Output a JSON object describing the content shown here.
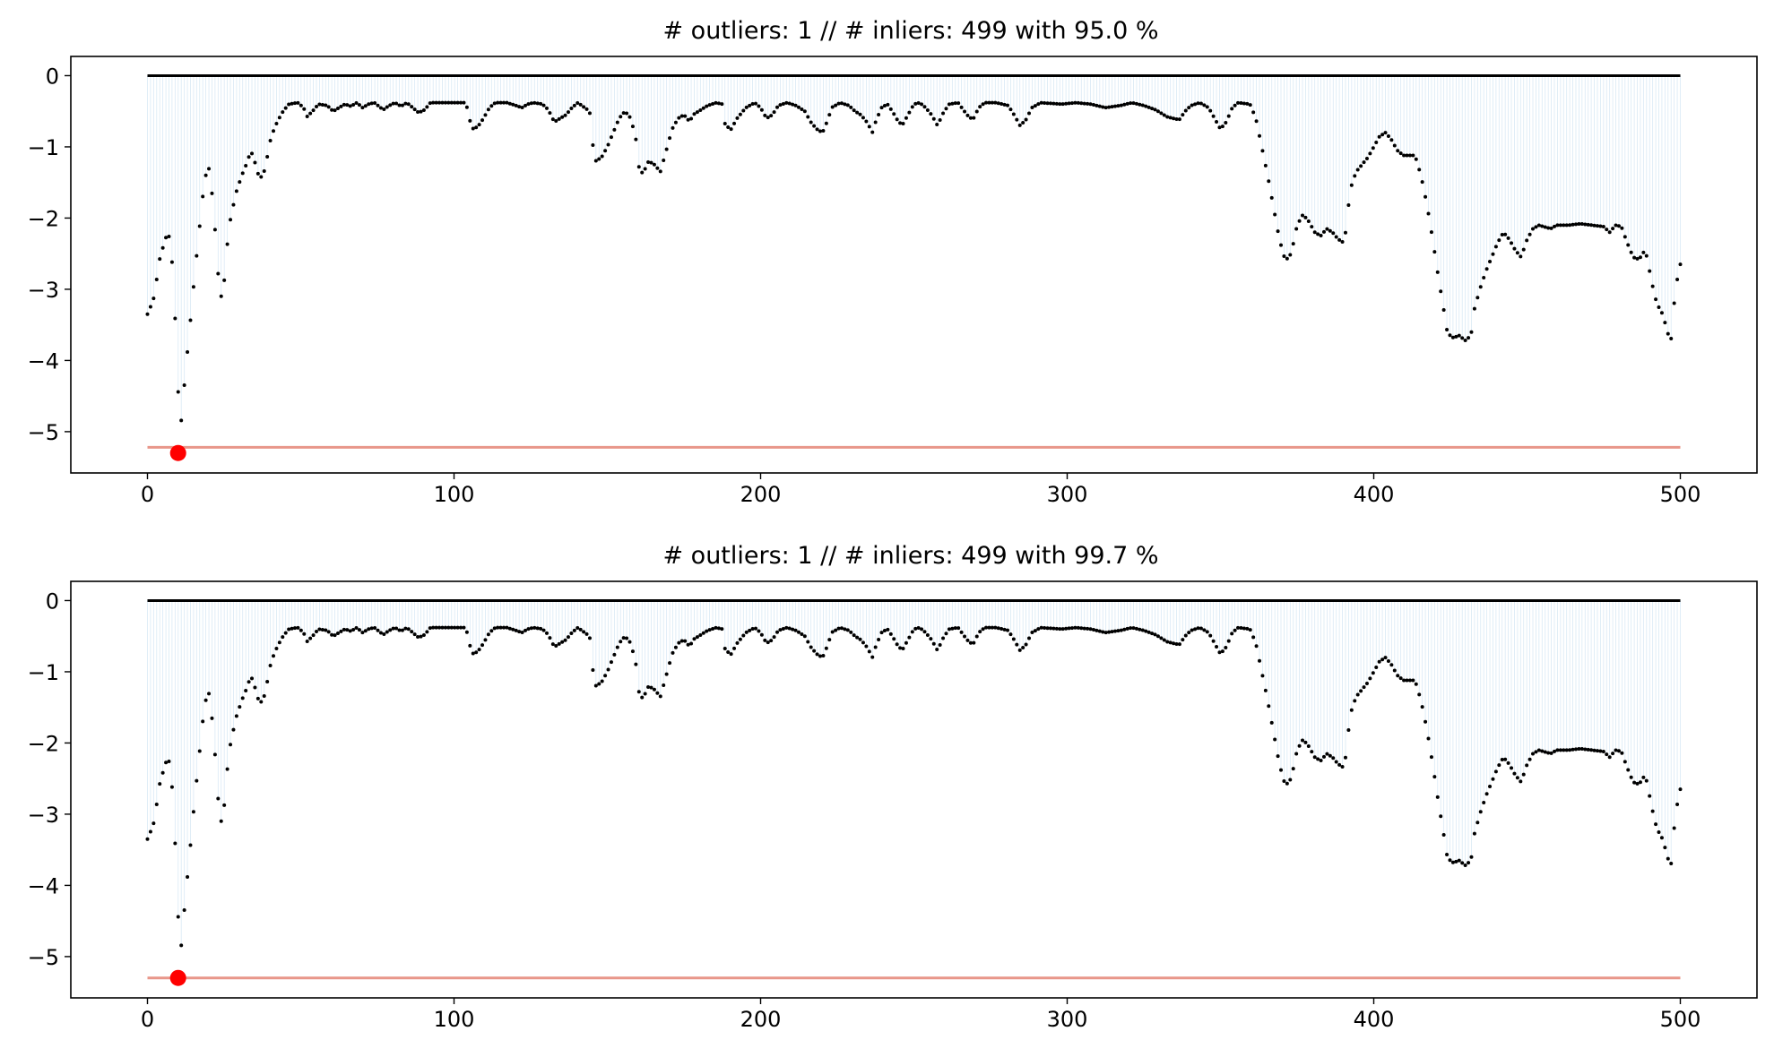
{
  "chart_data": [
    {
      "type": "scatter",
      "title": "# outliers: 1 // # inliers: 499 with 95.0 %",
      "xlim": [
        -25,
        525
      ],
      "ylim": [
        -5.58,
        0.27
      ],
      "xticks": [
        0,
        100,
        200,
        300,
        400,
        500
      ],
      "yticks": [
        0,
        -1,
        -2,
        -3,
        -4,
        -5
      ],
      "threshold": -5.22,
      "zero_line": 0,
      "outlier": {
        "x": 10,
        "y": -5.3
      },
      "colors": {
        "points": "#000000",
        "stems": "#d9e9f5",
        "zero_line": "#000000",
        "threshold": "#e8968a",
        "outlier": "#ff0000"
      }
    },
    {
      "type": "scatter",
      "title": "# outliers: 1 // # inliers: 499 with 99.7 %",
      "xlim": [
        -25,
        525
      ],
      "ylim": [
        -5.58,
        0.27
      ],
      "xticks": [
        0,
        100,
        200,
        300,
        400,
        500
      ],
      "yticks": [
        0,
        -1,
        -2,
        -3,
        -4,
        -5
      ],
      "threshold": -5.3,
      "zero_line": 0,
      "outlier": {
        "x": 10,
        "y": -5.3
      },
      "colors": {
        "points": "#000000",
        "stems": "#d9e9f5",
        "zero_line": "#000000",
        "threshold": "#e8968a",
        "outlier": "#ff0000"
      }
    }
  ],
  "series_anchors": [
    [
      0,
      -3.35
    ],
    [
      2,
      -3.15
    ],
    [
      3,
      -2.9
    ],
    [
      4,
      -2.6
    ],
    [
      6,
      -2.3
    ],
    [
      7,
      -2.2
    ],
    [
      8,
      -2.4
    ],
    [
      9,
      -3.05
    ],
    [
      10,
      -4.0
    ],
    [
      11,
      -5.05
    ],
    [
      12,
      -4.6
    ],
    [
      13,
      -4.1
    ],
    [
      14,
      -3.7
    ],
    [
      15,
      -3.25
    ],
    [
      16,
      -2.8
    ],
    [
      17,
      -2.4
    ],
    [
      18,
      -2.0
    ],
    [
      19,
      -1.6
    ],
    [
      20,
      -1.35
    ],
    [
      21,
      -1.3
    ],
    [
      22,
      -1.7
    ],
    [
      23,
      -2.2
    ],
    [
      24,
      -2.8
    ],
    [
      25,
      -3.1
    ],
    [
      26,
      -2.9
    ],
    [
      27,
      -2.4
    ],
    [
      28,
      -2.05
    ],
    [
      30,
      -1.65
    ],
    [
      32,
      -1.4
    ],
    [
      34,
      -1.2
    ],
    [
      35,
      -1.05
    ],
    [
      36,
      -1.15
    ],
    [
      37,
      -1.3
    ],
    [
      38,
      -1.45
    ],
    [
      39,
      -1.4
    ],
    [
      40,
      -1.3
    ],
    [
      41,
      -1.05
    ],
    [
      42,
      -0.85
    ],
    [
      44,
      -0.65
    ],
    [
      46,
      -0.5
    ],
    [
      48,
      -0.4
    ],
    [
      51,
      -0.38
    ],
    [
      53,
      -0.45
    ],
    [
      54,
      -0.58
    ],
    [
      56,
      -0.5
    ],
    [
      58,
      -0.4
    ],
    [
      61,
      -0.42
    ],
    [
      63,
      -0.5
    ],
    [
      65,
      -0.45
    ],
    [
      67,
      -0.4
    ],
    [
      69,
      -0.43
    ],
    [
      71,
      -0.38
    ],
    [
      73,
      -0.45
    ],
    [
      75,
      -0.4
    ],
    [
      77,
      -0.38
    ],
    [
      80,
      -0.48
    ],
    [
      82,
      -0.42
    ],
    [
      84,
      -0.38
    ],
    [
      86,
      -0.43
    ],
    [
      88,
      -0.38
    ],
    [
      90,
      -0.45
    ],
    [
      92,
      -0.52
    ],
    [
      94,
      -0.48
    ],
    [
      96,
      -0.38
    ],
    [
      108,
      -0.38
    ],
    [
      109,
      -0.55
    ],
    [
      110,
      -0.75
    ],
    [
      112,
      -0.72
    ],
    [
      114,
      -0.6
    ],
    [
      116,
      -0.45
    ],
    [
      118,
      -0.38
    ],
    [
      122,
      -0.38
    ],
    [
      125,
      -0.42
    ],
    [
      127,
      -0.45
    ],
    [
      129,
      -0.4
    ],
    [
      131,
      -0.38
    ],
    [
      134,
      -0.4
    ],
    [
      136,
      -0.48
    ],
    [
      138,
      -0.65
    ],
    [
      140,
      -0.6
    ],
    [
      142,
      -0.55
    ],
    [
      144,
      -0.45
    ],
    [
      146,
      -0.38
    ],
    [
      150,
      -0.5
    ],
    [
      151,
      -0.95
    ],
    [
      152,
      -1.2
    ],
    [
      154,
      -1.15
    ],
    [
      156,
      -1.0
    ],
    [
      158,
      -0.8
    ],
    [
      160,
      -0.6
    ],
    [
      162,
      -0.5
    ],
    [
      164,
      -0.6
    ],
    [
      166,
      -0.95
    ],
    [
      167,
      -1.4
    ],
    [
      169,
      -1.3
    ],
    [
      170,
      -1.2
    ],
    [
      172,
      -1.25
    ],
    [
      174,
      -1.35
    ],
    [
      175,
      -1.2
    ],
    [
      176,
      -1.05
    ],
    [
      178,
      -0.75
    ],
    [
      180,
      -0.6
    ],
    [
      182,
      -0.55
    ],
    [
      184,
      -0.65
    ],
    [
      185,
      -0.55
    ],
    [
      187,
      -0.5
    ],
    [
      190,
      -0.42
    ],
    [
      193,
      -0.38
    ],
    [
      195,
      -0.4
    ],
    [
      196,
      -0.7
    ],
    [
      198,
      -0.75
    ],
    [
      200,
      -0.6
    ],
    [
      203,
      -0.45
    ],
    [
      206,
      -0.38
    ],
    [
      208,
      -0.45
    ],
    [
      210,
      -0.6
    ],
    [
      212,
      -0.55
    ],
    [
      214,
      -0.42
    ],
    [
      217,
      -0.38
    ],
    [
      220,
      -0.42
    ],
    [
      223,
      -0.5
    ],
    [
      225,
      -0.65
    ],
    [
      227,
      -0.75
    ],
    [
      229,
      -0.8
    ],
    [
      231,
      -0.6
    ],
    [
      232,
      -0.45
    ],
    [
      235,
      -0.38
    ],
    [
      238,
      -0.42
    ],
    [
      240,
      -0.5
    ],
    [
      242,
      -0.55
    ],
    [
      244,
      -0.65
    ],
    [
      246,
      -0.8
    ],
    [
      247,
      -0.65
    ],
    [
      249,
      -0.45
    ],
    [
      251,
      -0.4
    ],
    [
      253,
      -0.52
    ],
    [
      254,
      -0.6
    ],
    [
      256,
      -0.7
    ],
    [
      258,
      -0.55
    ],
    [
      260,
      -0.4
    ],
    [
      262,
      -0.38
    ],
    [
      264,
      -0.45
    ],
    [
      266,
      -0.55
    ],
    [
      268,
      -0.7
    ],
    [
      270,
      -0.52
    ],
    [
      272,
      -0.4
    ],
    [
      275,
      -0.38
    ],
    [
      278,
      -0.55
    ],
    [
      280,
      -0.62
    ],
    [
      282,
      -0.45
    ],
    [
      284,
      -0.38
    ],
    [
      288,
      -0.38
    ],
    [
      292,
      -0.42
    ],
    [
      294,
      -0.55
    ],
    [
      296,
      -0.7
    ],
    [
      298,
      -0.62
    ],
    [
      300,
      -0.45
    ],
    [
      303,
      -0.38
    ],
    [
      310,
      -0.4
    ],
    [
      315,
      -0.38
    ],
    [
      320,
      -0.4
    ],
    [
      325,
      -0.45
    ],
    [
      330,
      -0.42
    ],
    [
      334,
      -0.38
    ],
    [
      338,
      -0.42
    ],
    [
      342,
      -0.48
    ],
    [
      346,
      -0.58
    ],
    [
      350,
      -0.62
    ],
    [
      352,
      -0.5
    ],
    [
      354,
      -0.42
    ],
    [
      357,
      -0.38
    ],
    [
      360,
      -0.45
    ],
    [
      362,
      -0.6
    ],
    [
      364,
      -0.75
    ],
    [
      366,
      -0.65
    ],
    [
      368,
      -0.45
    ],
    [
      370,
      -0.38
    ],
    [
      374,
      -0.4
    ],
    [
      376,
      -0.6
    ],
    [
      378,
      -1.0
    ],
    [
      380,
      -1.4
    ],
    [
      382,
      -1.85
    ],
    [
      384,
      -2.3
    ],
    [
      386,
      -2.6
    ],
    [
      388,
      -2.5
    ],
    [
      390,
      -2.1
    ],
    [
      392,
      -1.95
    ],
    [
      394,
      -2.05
    ],
    [
      396,
      -2.2
    ],
    [
      398,
      -2.25
    ],
    [
      400,
      -2.15
    ],
    [
      402,
      -2.2
    ],
    [
      404,
      -2.3
    ],
    [
      406,
      -2.35
    ],
    [
      407,
      -2.0
    ],
    [
      408,
      -1.6
    ],
    [
      410,
      -1.35
    ],
    [
      412,
      -1.25
    ],
    [
      414,
      -1.15
    ],
    [
      416,
      -1.0
    ],
    [
      418,
      -0.85
    ],
    [
      420,
      -0.8
    ],
    [
      422,
      -0.9
    ],
    [
      424,
      -1.05
    ],
    [
      426,
      -1.12
    ],
    [
      430,
      -1.12
    ],
    [
      432,
      -1.4
    ],
    [
      434,
      -1.8
    ],
    [
      436,
      -2.3
    ],
    [
      438,
      -2.85
    ],
    [
      440,
      -3.35
    ],
    [
      441,
      -3.62
    ],
    [
      443,
      -3.68
    ],
    [
      445,
      -3.65
    ],
    [
      447,
      -3.72
    ],
    [
      449,
      -3.65
    ],
    [
      450,
      -3.3
    ],
    [
      452,
      -3.0
    ],
    [
      454,
      -2.75
    ],
    [
      456,
      -2.55
    ],
    [
      458,
      -2.35
    ],
    [
      460,
      -2.2
    ],
    [
      462,
      -2.3
    ],
    [
      464,
      -2.45
    ],
    [
      466,
      -2.55
    ],
    [
      468,
      -2.3
    ],
    [
      470,
      -2.15
    ],
    [
      472,
      -2.1
    ],
    [
      476,
      -2.15
    ],
    [
      478,
      -2.1
    ],
    [
      482,
      -2.1
    ],
    [
      486,
      -2.08
    ],
    [
      490,
      -2.1
    ],
    [
      494,
      -2.12
    ],
    [
      496,
      -2.2
    ],
    [
      498,
      -2.1
    ],
    [
      500,
      -2.12
    ],
    [
      502,
      -2.35
    ],
    [
      504,
      -2.55
    ],
    [
      506,
      -2.58
    ],
    [
      508,
      -2.45
    ],
    [
      509,
      -2.6
    ],
    [
      510,
      -2.85
    ],
    [
      512,
      -3.2
    ],
    [
      514,
      -3.35
    ],
    [
      516,
      -3.65
    ],
    [
      517,
      -3.7
    ],
    [
      518,
      -3.15
    ],
    [
      519,
      -2.85
    ],
    [
      520,
      -2.65
    ]
  ]
}
